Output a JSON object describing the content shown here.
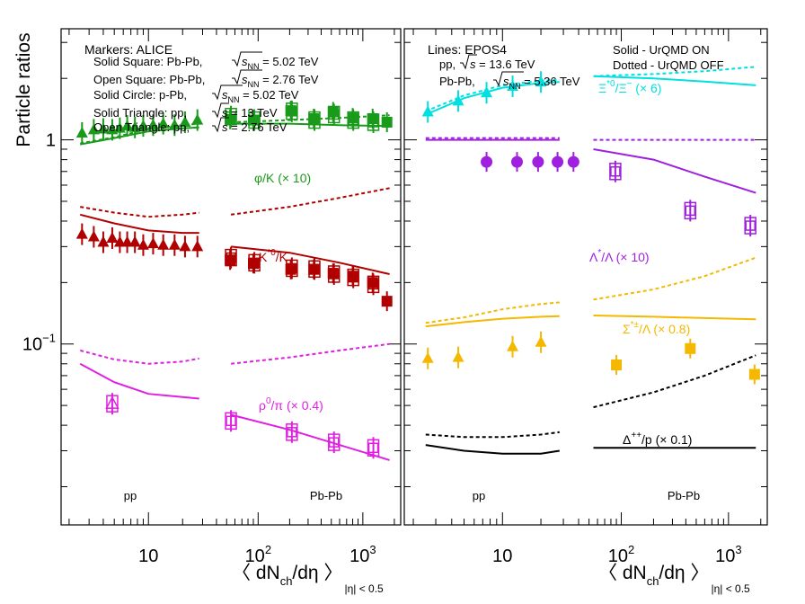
{
  "figure": {
    "ylabel": "Particle ratios",
    "xlabel": "〈 dN",
    "xlabel_sub": "ch",
    "xlabel_tail": "/dη 〉",
    "xlabel_range": "|η| < 0.5",
    "xticks": [
      {
        "label": "10",
        "base": "10",
        "exp": ""
      },
      {
        "label": "10^2",
        "base": "10",
        "exp": "2"
      },
      {
        "label": "10^3",
        "base": "10",
        "exp": "3"
      }
    ],
    "yticks": [
      {
        "label": "1",
        "base": "1",
        "exp": ""
      },
      {
        "label": "10^-1",
        "base": "10",
        "exp": "−1"
      }
    ]
  },
  "legend_left": {
    "heading": "Markers: ALICE",
    "entries": [
      {
        "text": "Solid Square: Pb-Pb,",
        "energy": "√s_NN = 5.02 TeV",
        "rad": "s",
        "sub": "NN",
        "val": " = 5.02 TeV"
      },
      {
        "text": "Open Square: Pb-Pb,",
        "energy": "√s_NN = 2.76 TeV",
        "rad": "s",
        "sub": "NN",
        "val": " = 2.76 TeV"
      },
      {
        "text": "Solid Circle: p-Pb,",
        "energy": "√s_NN = 5.02 TeV",
        "rad": "s",
        "sub": "NN",
        "val": " = 5.02 TeV"
      },
      {
        "text": "Solid Triangle: pp,",
        "energy": "√s = 13 TeV",
        "rad": "s",
        "sub": "",
        "val": " = 13 TeV"
      },
      {
        "text": "Open Triangle: pp,",
        "energy": "√s = 2.76 TeV",
        "rad": "s",
        "sub": "",
        "val": " = 2.76 TeV"
      }
    ]
  },
  "legend_right": {
    "heading": "Lines: EPOS4",
    "entries": [
      {
        "text": "pp,",
        "energy": "√s = 13.6 TeV",
        "rad": "s",
        "sub": "",
        "val": " = 13.6 TeV"
      },
      {
        "text": "Pb-Pb,",
        "energy": "√s_NN = 5.36 TeV",
        "rad": "s",
        "sub": "NN",
        "val": " = 5.36 TeV"
      }
    ],
    "style_notes": [
      "Solid - UrQMD ON",
      "Dotted - UrQMD OFF"
    ]
  },
  "panel_labels": {
    "left_pp": "pp",
    "left_pbpb": "Pb-Pb",
    "right_pp": "pp",
    "right_pbpb": "Pb-Pb"
  },
  "colors": {
    "phi": "#1a9a1a",
    "kstar": "#b00000",
    "rho": "#e020e0",
    "xi": "#00e0e0",
    "lambda": "#a020e0",
    "sigma": "#f5b800",
    "delta": "#000000"
  },
  "chart_data": {
    "type": "scatter",
    "title": "",
    "xlabel": "⟨dN_ch/dη⟩_|η|<0.5",
    "ylabel": "Particle ratios",
    "xscale": "log",
    "yscale": "log",
    "ylim": [
      0.013,
      3.5
    ],
    "panels": [
      {
        "name": "left",
        "xlim_pp": [
          1.7,
          37
        ],
        "xlim_pbpb": [
          37,
          2300
        ],
        "series": [
          {
            "name": "φ/K (× 10)",
            "label_base": "φ/K (× 10)",
            "color_key": "phi",
            "pp13_solid_triangle": {
              "x": [
                2.6,
                3.3,
                4.0,
                4.8,
                5.6,
                6.5,
                7.6,
                9.0,
                11,
                13.5,
                17,
                21,
                27
              ],
              "y": [
                1.08,
                1.12,
                1.13,
                1.12,
                1.14,
                1.17,
                1.15,
                1.17,
                1.18,
                1.2,
                1.18,
                1.22,
                1.25
              ]
            },
            "pbpb502_solid_square": {
              "x": [
                54,
                90,
                205,
                340,
                520,
                800,
                1240,
                1700
              ],
              "y": [
                1.26,
                1.25,
                1.39,
                1.27,
                1.37,
                1.28,
                1.27,
                1.22
              ]
            },
            "pbpb276_open_square": {
              "x": [
                55,
                92,
                210,
                345,
                530,
                810,
                1260
              ],
              "y": [
                1.3,
                1.25,
                1.38,
                1.25,
                1.33,
                1.25,
                1.22
              ]
            },
            "epos_pp_solid": {
              "x": [
                2.5,
                5,
                10,
                20,
                28
              ],
              "y": [
                0.95,
                1.02,
                1.1,
                1.14,
                1.15
              ]
            },
            "epos_pp_dotted": {
              "x": [
                2.5,
                5,
                10,
                20,
                28
              ],
              "y": [
                0.96,
                1.03,
                1.13,
                1.18,
                1.2
              ]
            },
            "epos_pbpb_solid": {
              "x": [
                55,
                200,
                600,
                1800
              ],
              "y": [
                1.2,
                1.2,
                1.18,
                1.17
              ]
            },
            "epos_pbpb_dotted": {
              "x": [
                55,
                200,
                600,
                1800
              ],
              "y": [
                1.22,
                1.25,
                1.28,
                1.32
              ]
            }
          },
          {
            "name": "K*0/K",
            "label_base": "K",
            "label_sup": "*0",
            "label_tail": "/K",
            "color_key": "kstar",
            "pp13_solid_triangle": {
              "x": [
                2.6,
                3.3,
                4.0,
                4.8,
                5.6,
                6.5,
                7.6,
                9.0,
                11,
                13.5,
                17,
                21,
                27
              ],
              "y": [
                0.345,
                0.335,
                0.315,
                0.33,
                0.315,
                0.315,
                0.315,
                0.305,
                0.31,
                0.305,
                0.305,
                0.3,
                0.3
              ]
            },
            "pbpb502_solid_square": {
              "x": [
                54,
                90,
                205,
                340,
                520,
                800,
                1240,
                1700
              ],
              "y": [
                0.258,
                0.248,
                0.232,
                0.232,
                0.222,
                0.215,
                0.2,
                0.162
              ]
            },
            "pbpb276_open_square": {
              "x": [
                55,
                92,
                210,
                345,
                530,
                810,
                1260
              ],
              "y": [
                0.265,
                0.25,
                0.235,
                0.233,
                0.22,
                0.212,
                0.196
              ]
            },
            "epos_pp_solid": {
              "x": [
                2.5,
                5,
                10,
                20,
                28
              ],
              "y": [
                0.43,
                0.39,
                0.36,
                0.35,
                0.35
              ]
            },
            "epos_pp_dotted": {
              "x": [
                2.5,
                5,
                10,
                20,
                28
              ],
              "y": [
                0.47,
                0.44,
                0.42,
                0.43,
                0.44
              ]
            },
            "epos_pbpb_solid": {
              "x": [
                55,
                200,
                600,
                1800
              ],
              "y": [
                0.3,
                0.28,
                0.25,
                0.22
              ]
            },
            "epos_pbpb_dotted": {
              "x": [
                55,
                200,
                600,
                1800
              ],
              "y": [
                0.43,
                0.47,
                0.52,
                0.58
              ]
            }
          },
          {
            "name": "ρ0/π (× 0.4)",
            "label_base": "ρ",
            "label_sup": "0",
            "label_tail": "/π (× 0.4)",
            "color_key": "rho",
            "pp276_open_triangle": {
              "x": [
                4.8
              ],
              "y": [
                0.051
              ]
            },
            "pbpb276_open_square": {
              "x": [
                55,
                210,
                530,
                1260
              ],
              "y": [
                0.042,
                0.037,
                0.033,
                0.031
              ]
            },
            "epos_pp_solid": {
              "x": [
                2.5,
                5,
                10,
                20,
                28
              ],
              "y": [
                0.08,
                0.065,
                0.057,
                0.055,
                0.054
              ]
            },
            "epos_pp_dotted": {
              "x": [
                2.5,
                5,
                10,
                20,
                28
              ],
              "y": [
                0.093,
                0.084,
                0.08,
                0.082,
                0.085
              ]
            },
            "epos_pbpb_solid": {
              "x": [
                55,
                200,
                600,
                1800
              ],
              "y": [
                0.045,
                0.038,
                0.032,
                0.027
              ]
            },
            "epos_pbpb_dotted": {
              "x": [
                55,
                200,
                600,
                1800
              ],
              "y": [
                0.08,
                0.086,
                0.093,
                0.1
              ]
            }
          }
        ]
      },
      {
        "name": "right",
        "xlim_pp": [
          1.7,
          37
        ],
        "xlim_pbpb": [
          37,
          2300
        ],
        "series": [
          {
            "name": "Ξ*0/Ξ- (× 6)",
            "label_base": "Ξ",
            "label_sup": "*0",
            "label_tail": "/Ξ",
            "label_sup2": "−",
            "label_after": " (× 6)",
            "color_key": "xi",
            "pp13_solid_triangle": {
              "x": [
                2.6,
                4.5,
                7.5,
                12,
                20
              ],
              "y": [
                1.37,
                1.55,
                1.7,
                1.83,
                1.92
              ]
            },
            "epos_pp_solid": {
              "x": [
                2.5,
                5,
                10,
                20,
                28
              ],
              "y": [
                1.33,
                1.6,
                1.8,
                1.9,
                1.92
              ]
            },
            "epos_pp_dotted": {
              "x": [
                2.5,
                5,
                10,
                20,
                28
              ],
              "y": [
                1.38,
                1.65,
                1.85,
                1.95,
                1.97
              ]
            },
            "epos_pbpb_solid": {
              "x": [
                55,
                200,
                600,
                1800
              ],
              "y": [
                2.05,
                2.0,
                1.93,
                1.85
              ]
            },
            "epos_pbpb_dotted": {
              "x": [
                55,
                200,
                600,
                1800
              ],
              "y": [
                2.05,
                2.1,
                2.17,
                2.28
              ]
            }
          },
          {
            "name": "Λ*/Λ (× 10)",
            "label_base": "Λ",
            "label_sup": "*",
            "label_tail": "/Λ (× 10)",
            "color_key": "lambda",
            "ppb502_solid_circle": {
              "x": [
                7.5,
                13,
                19,
                27,
                36
              ],
              "y": [
                0.78,
                0.78,
                0.78,
                0.78,
                0.78
              ]
            },
            "pbpb276_open_square": {
              "x": [
                88,
                440,
                1600
              ],
              "y": [
                0.7,
                0.45,
                0.38
              ]
            },
            "epos_pp_solid": {
              "x": [
                2.5,
                5,
                10,
                20,
                28
              ],
              "y": [
                1.0,
                1.0,
                1.0,
                1.0,
                1.0
              ]
            },
            "epos_pp_dotted": {
              "x": [
                2.5,
                5,
                10,
                20,
                28
              ],
              "y": [
                1.02,
                1.02,
                1.02,
                1.02,
                1.02
              ]
            },
            "epos_pbpb_solid": {
              "x": [
                55,
                200,
                600,
                1800
              ],
              "y": [
                0.9,
                0.8,
                0.66,
                0.55
              ]
            },
            "epos_pbpb_dotted": {
              "x": [
                55,
                200,
                600,
                1800
              ],
              "y": [
                1.0,
                1.0,
                1.0,
                1.0
              ]
            }
          },
          {
            "name": "Σ*±/Λ (× 0.8)",
            "label_base": "Σ",
            "label_sup": "*±",
            "label_tail": "/Λ (× 0.8)",
            "color_key": "sigma",
            "pp13_solid_triangle": {
              "x": [
                2.6,
                4.5,
                12,
                20
              ],
              "y": [
                0.085,
                0.086,
                0.097,
                0.102
              ]
            },
            "pbpb502_solid_square": {
              "x": [
                90,
                440,
                1750
              ],
              "y": [
                0.079,
                0.095,
                0.071
              ]
            },
            "epos_pp_solid": {
              "x": [
                2.5,
                5,
                10,
                20,
                28
              ],
              "y": [
                0.122,
                0.128,
                0.133,
                0.136,
                0.137
              ]
            },
            "epos_pp_dotted": {
              "x": [
                2.5,
                5,
                10,
                20,
                28
              ],
              "y": [
                0.127,
                0.135,
                0.148,
                0.157,
                0.16
              ]
            },
            "epos_pbpb_solid": {
              "x": [
                55,
                200,
                600,
                1800
              ],
              "y": [
                0.138,
                0.136,
                0.134,
                0.132
              ]
            },
            "epos_pbpb_dotted": {
              "x": [
                55,
                200,
                600,
                1800
              ],
              "y": [
                0.165,
                0.185,
                0.215,
                0.265
              ]
            }
          },
          {
            "name": "Δ++/p (× 0.1)",
            "label_base": "Δ",
            "label_sup": "++",
            "label_tail": "/p (× 0.1)",
            "color_key": "delta",
            "epos_pp_solid": {
              "x": [
                2.5,
                5,
                10,
                20,
                28
              ],
              "y": [
                0.032,
                0.03,
                0.029,
                0.029,
                0.03
              ]
            },
            "epos_pp_dotted": {
              "x": [
                2.5,
                5,
                10,
                20,
                28
              ],
              "y": [
                0.036,
                0.035,
                0.035,
                0.036,
                0.037
              ]
            },
            "epos_pbpb_solid": {
              "x": [
                55,
                200,
                600,
                1800
              ],
              "y": [
                0.031,
                0.031,
                0.031,
                0.031
              ]
            },
            "epos_pbpb_dotted": {
              "x": [
                55,
                200,
                600,
                1800
              ],
              "y": [
                0.049,
                0.058,
                0.07,
                0.088
              ]
            }
          }
        ]
      }
    ]
  }
}
